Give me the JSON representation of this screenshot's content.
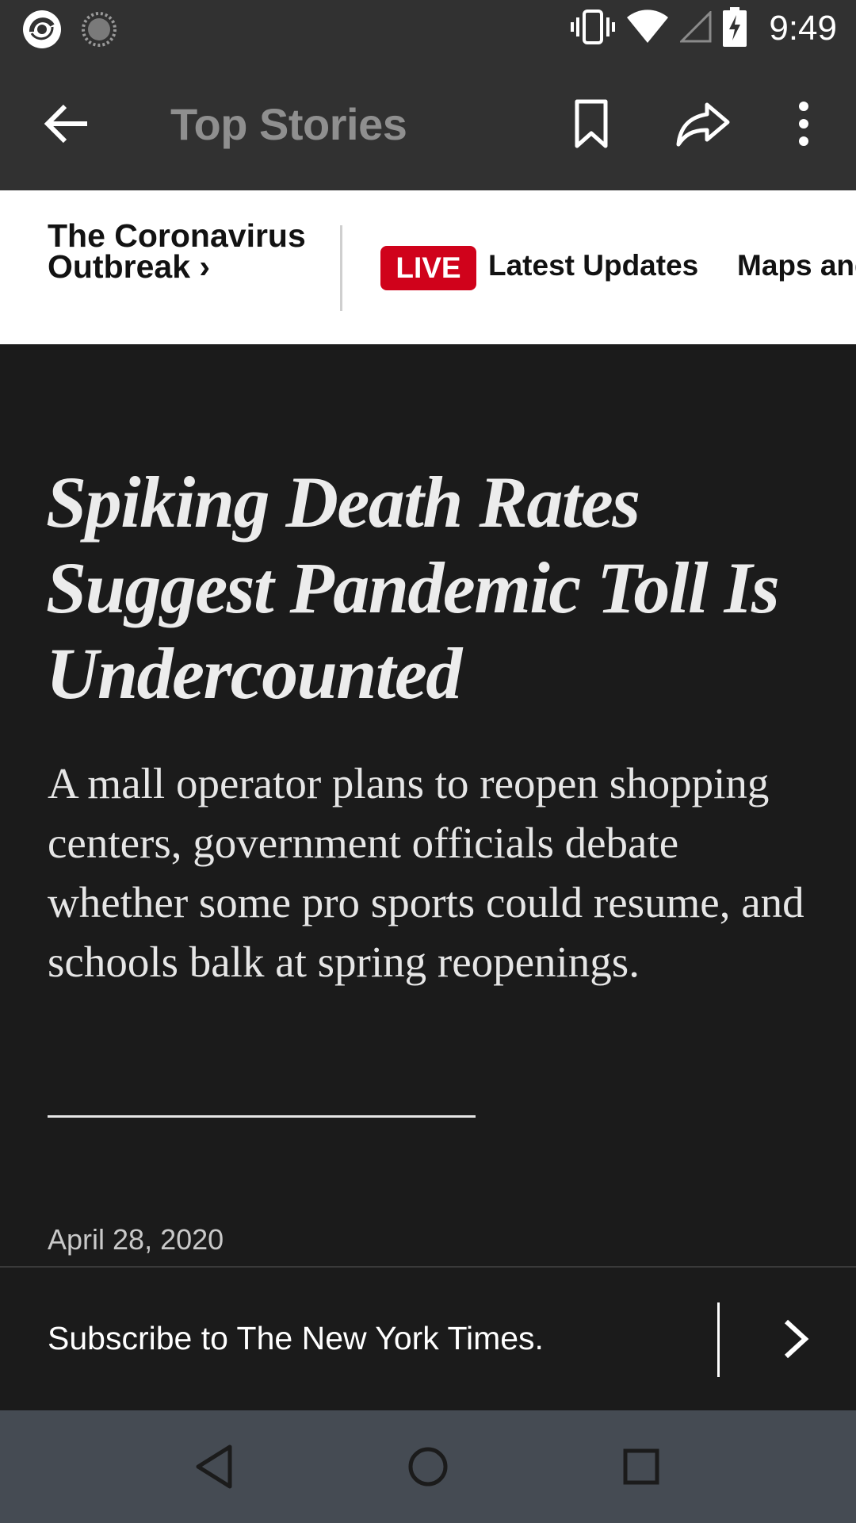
{
  "status_bar": {
    "time": "9:49",
    "left_icons": [
      "app-notification-icon",
      "loading-spinner-icon"
    ],
    "right_icons": [
      "vibrate-icon",
      "wifi-icon",
      "cellular-signal-icon",
      "battery-charging-icon"
    ]
  },
  "app_bar": {
    "title": "Top Stories",
    "actions": [
      "back-arrow-icon",
      "bookmark-icon",
      "share-icon",
      "overflow-menu-icon"
    ]
  },
  "topic_strip": {
    "topic_title_line1": "The Coronavirus",
    "topic_title_line2": "Outbreak ›",
    "live_badge": "LIVE",
    "links": [
      "Latest Updates",
      "Maps and"
    ]
  },
  "article": {
    "headline": "Spiking Death Rates Suggest Pandemic Toll Is Undercounted",
    "summary": "A mall operator plans to reopen shopping centers, government officials debate whether some pro sports could resume, and schools balk at spring reopenings.",
    "date": "April 28, 2020"
  },
  "subscribe": {
    "text": "Subscribe to The New York Times."
  },
  "colors": {
    "live_red": "#d0021b",
    "app_bar_bg": "#313131",
    "article_bg": "#1b1b1b",
    "nav_bar_bg": "#454b53"
  }
}
